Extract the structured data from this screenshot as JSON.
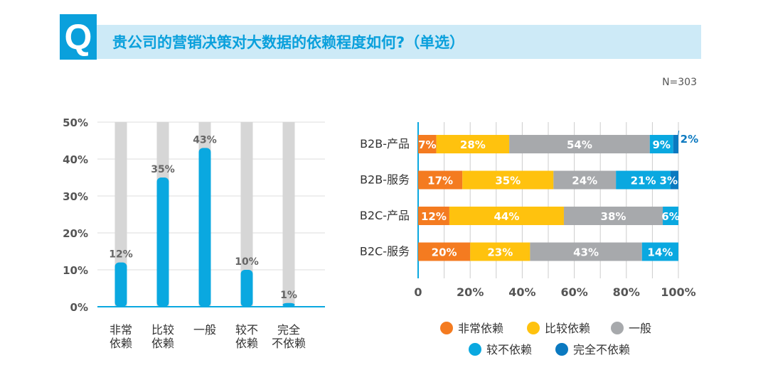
{
  "header": {
    "q_label": "Q",
    "title": "贵公司的营销决策对大数据的依赖程度如何?（单选）",
    "sample": "N=303"
  },
  "chart_data": [
    {
      "type": "bar",
      "categories": [
        [
          "非常",
          "依赖"
        ],
        [
          "比较",
          "依赖"
        ],
        [
          "一般"
        ],
        [
          "较不",
          "依赖"
        ],
        [
          "完全",
          "不依赖"
        ]
      ],
      "values": [
        12,
        35,
        43,
        10,
        1
      ],
      "ylim": [
        0,
        50
      ],
      "yticks": [
        "0%",
        "10%",
        "20%",
        "30%",
        "40%",
        "50%"
      ],
      "bar_color": "#0aa8e0",
      "bg_color": "#d6d6d6",
      "grid": true
    },
    {
      "type": "bar",
      "orientation": "horizontal",
      "stacked": true,
      "categories": [
        "B2B-产品",
        "B2B-服务",
        "B2C-产品",
        "B2C-服务"
      ],
      "series": [
        {
          "name": "非常依赖",
          "color": "#f47b20",
          "values": [
            7,
            17,
            12,
            20
          ]
        },
        {
          "name": "比较依赖",
          "color": "#ffc20e",
          "values": [
            28,
            35,
            44,
            23
          ]
        },
        {
          "name": "一般",
          "color": "#a7a9ac",
          "values": [
            54,
            24,
            38,
            43
          ]
        },
        {
          "name": "较不依赖",
          "color": "#0aa8e0",
          "values": [
            9,
            21,
            6,
            14
          ]
        },
        {
          "name": "完全不依赖",
          "color": "#0b79c0",
          "values": [
            2,
            3,
            0,
            0
          ]
        }
      ],
      "xlim": [
        0,
        100
      ],
      "xticks": [
        "0",
        "20%",
        "40%",
        "60%",
        "80%",
        "100%"
      ],
      "legend": "bottom",
      "grid": true
    }
  ]
}
